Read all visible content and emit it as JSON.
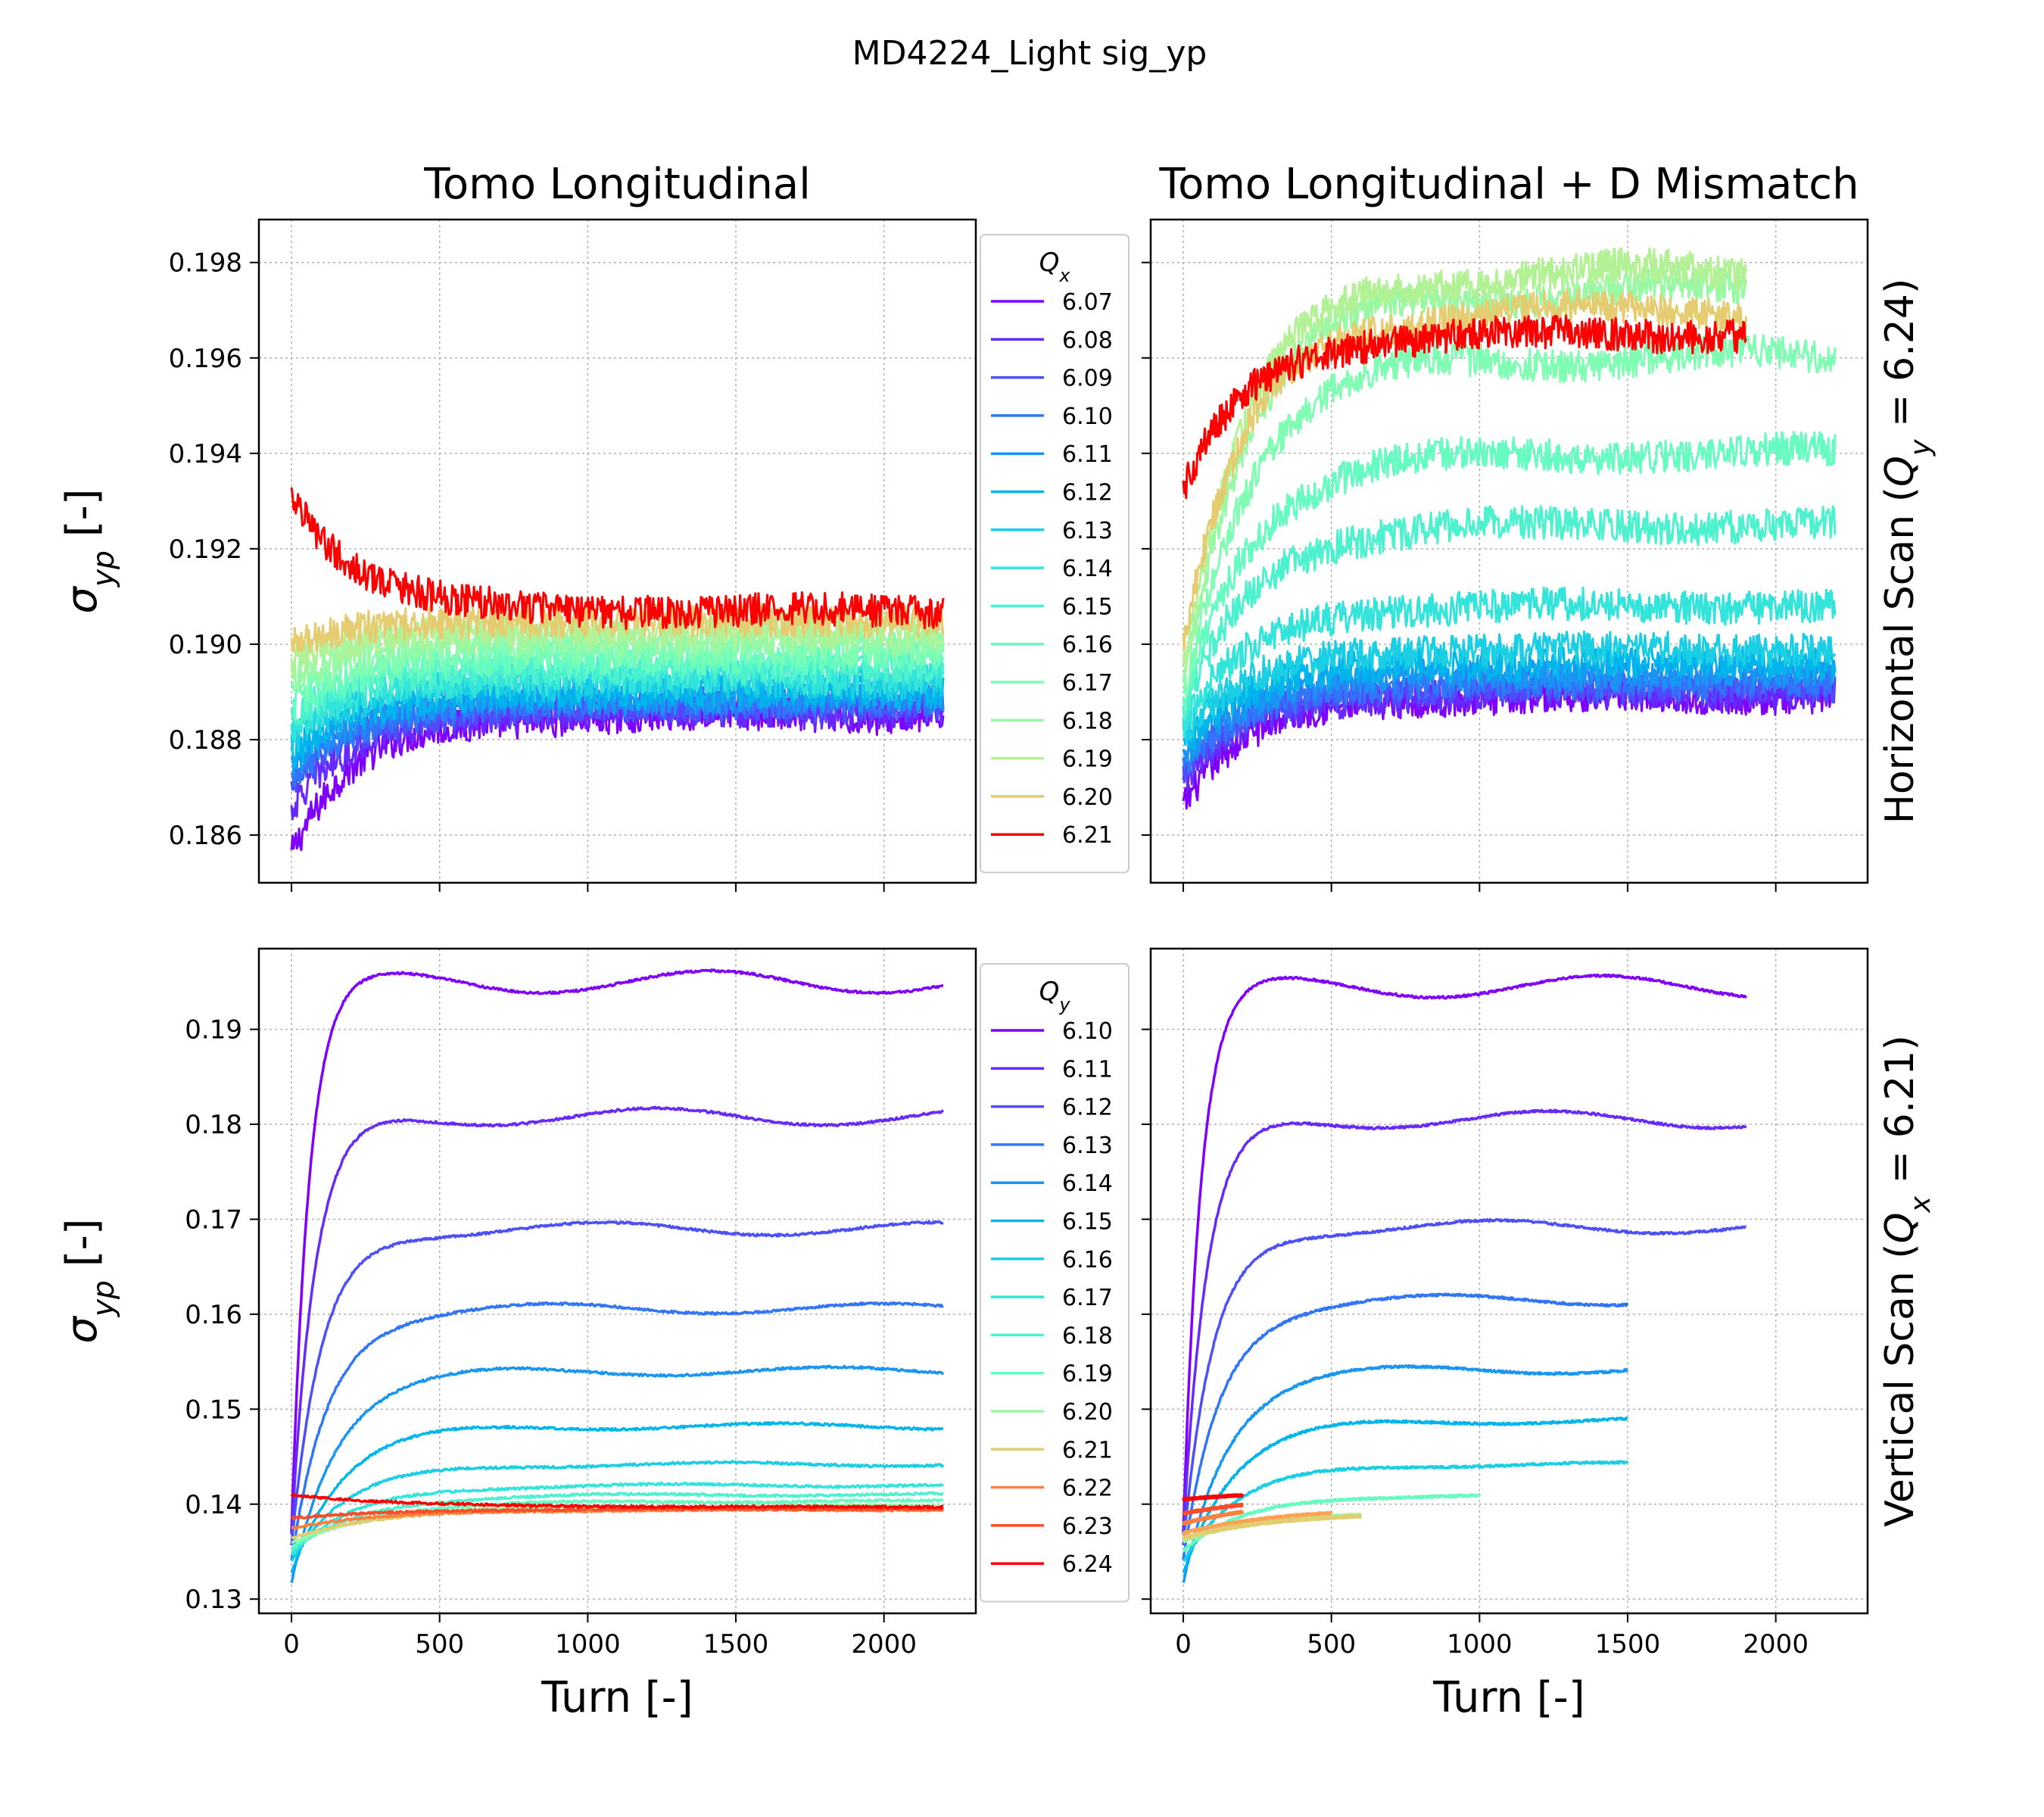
{
  "figure": {
    "suptitle": "MD4224_Light sig_yp",
    "col_titles": [
      "Tomo Longitudinal",
      "Tomo Longitudinal + D Mismatch"
    ],
    "row_labels": [
      "Horizontal Scan (Q_y = 6.24)",
      "Vertical Scan (Q_x = 6.21)"
    ],
    "ylabel": "σ_yp [-]",
    "xlabel": "Turn [-]"
  },
  "chart_data": [
    {
      "id": "top-left",
      "type": "line",
      "title": "Tomo Longitudinal",
      "xlabel": "",
      "ylabel": "σ_yp [-]",
      "xlim": [
        -110,
        2310
      ],
      "ylim": [
        0.185,
        0.1989
      ],
      "xticks": [
        0,
        500,
        1000,
        1500,
        2000
      ],
      "yticks": [
        0.186,
        0.188,
        0.19,
        0.192,
        0.194,
        0.196,
        0.198
      ],
      "ytick_labels": [
        "0.186",
        "0.188",
        "0.190",
        "0.192",
        "0.194",
        "0.196",
        "0.198"
      ],
      "grid": true,
      "legend": {
        "title": "Q_x",
        "placement": "right-outside"
      },
      "series": [
        {
          "name": "6.07",
          "color": "#7f00ff",
          "end": 2200,
          "plateau": 0.1885,
          "start": 0.1856,
          "noise": 0.00035
        },
        {
          "name": "6.08",
          "color": "#6629fe",
          "end": 2200,
          "plateau": 0.1886,
          "start": 0.1865,
          "noise": 0.00035
        },
        {
          "name": "6.09",
          "color": "#4c50fc",
          "end": 2200,
          "plateau": 0.1887,
          "start": 0.187,
          "noise": 0.00035
        },
        {
          "name": "6.10",
          "color": "#3176f8",
          "end": 2200,
          "plateau": 0.1888,
          "start": 0.1872,
          "noise": 0.00035
        },
        {
          "name": "6.11",
          "color": "#1996f3",
          "end": 2200,
          "plateau": 0.1889,
          "start": 0.1875,
          "noise": 0.00035
        },
        {
          "name": "6.12",
          "color": "#00b5eb",
          "end": 2200,
          "plateau": 0.189,
          "start": 0.1877,
          "noise": 0.00035
        },
        {
          "name": "6.13",
          "color": "#1acee3",
          "end": 2200,
          "plateau": 0.1892,
          "start": 0.188,
          "noise": 0.00035
        },
        {
          "name": "6.14",
          "color": "#32e4d9",
          "end": 2200,
          "plateau": 0.1893,
          "start": 0.1882,
          "noise": 0.00035
        },
        {
          "name": "6.15",
          "color": "#4cf2ce",
          "end": 2200,
          "plateau": 0.1895,
          "start": 0.1885,
          "noise": 0.00035
        },
        {
          "name": "6.16",
          "color": "#66fcc1",
          "end": 2200,
          "plateau": 0.1897,
          "start": 0.1887,
          "noise": 0.00035
        },
        {
          "name": "6.17",
          "color": "#7ffeb3",
          "end": 2200,
          "plateau": 0.1899,
          "start": 0.189,
          "noise": 0.00035
        },
        {
          "name": "6.18",
          "color": "#99f8a4",
          "end": 2200,
          "plateau": 0.1901,
          "start": 0.1893,
          "noise": 0.00035
        },
        {
          "name": "6.19",
          "color": "#b2f295",
          "end": 2200,
          "plateau": 0.1903,
          "start": 0.1896,
          "noise": 0.00035
        },
        {
          "name": "6.20",
          "color": "#e6cc70",
          "end": 2200,
          "plateau": 0.1905,
          "start": 0.19,
          "noise": 0.00035
        },
        {
          "name": "6.21",
          "color": "#ff0000",
          "end": 2200,
          "plateau": 0.1907,
          "start": 0.1932,
          "noise": 0.00035
        }
      ]
    },
    {
      "id": "top-right",
      "type": "line",
      "title": "Tomo Longitudinal + D Mismatch",
      "xlabel": "",
      "ylabel": "",
      "xlim": [
        -110,
        2310
      ],
      "ylim": [
        0.185,
        0.1989
      ],
      "xticks": [
        0,
        500,
        1000,
        1500,
        2000
      ],
      "yticks": [
        0.186,
        0.188,
        0.19,
        0.192,
        0.194,
        0.196,
        0.198
      ],
      "grid": true,
      "row_label": "Horizontal Scan (Q_y = 6.24)",
      "series": [
        {
          "name": "6.07",
          "color": "#7f00ff",
          "end": 2200,
          "plateau": 0.1889,
          "start": 0.1866,
          "noise": 0.00035
        },
        {
          "name": "6.08",
          "color": "#6629fe",
          "end": 2200,
          "plateau": 0.189,
          "start": 0.187,
          "noise": 0.00035
        },
        {
          "name": "6.09",
          "color": "#4c50fc",
          "end": 2200,
          "plateau": 0.1891,
          "start": 0.1873,
          "noise": 0.00035
        },
        {
          "name": "6.10",
          "color": "#3176f8",
          "end": 2200,
          "plateau": 0.1892,
          "start": 0.1875,
          "noise": 0.00035
        },
        {
          "name": "6.11",
          "color": "#1996f3",
          "end": 2200,
          "plateau": 0.1894,
          "start": 0.1877,
          "noise": 0.00035
        },
        {
          "name": "6.12",
          "color": "#00b5eb",
          "end": 2200,
          "plateau": 0.1896,
          "start": 0.1879,
          "noise": 0.00035
        },
        {
          "name": "6.13",
          "color": "#1acee3",
          "end": 2200,
          "plateau": 0.1899,
          "start": 0.1881,
          "noise": 0.00035
        },
        {
          "name": "6.14",
          "color": "#32e4d9",
          "end": 2200,
          "plateau": 0.1908,
          "start": 0.1883,
          "noise": 0.00035
        },
        {
          "name": "6.15",
          "color": "#4cf2ce",
          "end": 2200,
          "plateau": 0.1925,
          "start": 0.1885,
          "noise": 0.00035
        },
        {
          "name": "6.16",
          "color": "#66fcc1",
          "end": 2200,
          "plateau": 0.194,
          "start": 0.1887,
          "noise": 0.00035
        },
        {
          "name": "6.17",
          "color": "#7ffeb3",
          "end": 2200,
          "plateau": 0.196,
          "start": 0.1889,
          "noise": 0.00035
        },
        {
          "name": "6.18",
          "color": "#99f8a4",
          "end": 1900,
          "plateau": 0.1974,
          "start": 0.1892,
          "noise": 0.00035
        },
        {
          "name": "6.19",
          "color": "#b2f295",
          "end": 1900,
          "plateau": 0.1978,
          "start": 0.1895,
          "noise": 0.00035
        },
        {
          "name": "6.20",
          "color": "#e6cc70",
          "end": 1900,
          "plateau": 0.197,
          "start": 0.19,
          "noise": 0.00035
        },
        {
          "name": "6.21",
          "color": "#ff0000",
          "end": 1900,
          "plateau": 0.1965,
          "start": 0.1932,
          "noise": 0.00035
        }
      ]
    },
    {
      "id": "bottom-left",
      "type": "line",
      "title": "",
      "xlabel": "Turn [-]",
      "ylabel": "σ_yp [-]",
      "xlim": [
        -110,
        2310
      ],
      "ylim": [
        0.1285,
        0.1985
      ],
      "xticks": [
        0,
        500,
        1000,
        1500,
        2000
      ],
      "xtick_labels": [
        "0",
        "500",
        "1000",
        "1500",
        "2000"
      ],
      "yticks": [
        0.13,
        0.14,
        0.15,
        0.16,
        0.17,
        0.18,
        0.19
      ],
      "ytick_labels": [
        "0.13",
        "0.14",
        "0.15",
        "0.16",
        "0.17",
        "0.18",
        "0.19"
      ],
      "grid": true,
      "legend": {
        "title": "Q_y",
        "placement": "right-outside"
      },
      "series": [
        {
          "name": "6.10",
          "color": "#7f00ff",
          "end": 2200,
          "plateau": 0.195,
          "start": 0.137,
          "noise": 0.00012
        },
        {
          "name": "6.11",
          "color": "#6629fe",
          "end": 2200,
          "plateau": 0.1808,
          "start": 0.136,
          "noise": 0.00012
        },
        {
          "name": "6.12",
          "color": "#4c50fc",
          "end": 2200,
          "plateau": 0.169,
          "start": 0.135,
          "noise": 0.00012
        },
        {
          "name": "6.13",
          "color": "#3176f8",
          "end": 2200,
          "plateau": 0.1606,
          "start": 0.134,
          "noise": 0.00012
        },
        {
          "name": "6.14",
          "color": "#1996f3",
          "end": 2200,
          "plateau": 0.154,
          "start": 0.132,
          "noise": 0.00012
        },
        {
          "name": "6.15",
          "color": "#00b5eb",
          "end": 2200,
          "plateau": 0.1482,
          "start": 0.133,
          "noise": 0.00012
        },
        {
          "name": "6.16",
          "color": "#1acee3",
          "end": 2200,
          "plateau": 0.1442,
          "start": 0.134,
          "noise": 0.00012
        },
        {
          "name": "6.17",
          "color": "#32e4d9",
          "end": 2200,
          "plateau": 0.142,
          "start": 0.1345,
          "noise": 0.00012
        },
        {
          "name": "6.18",
          "color": "#4cf2ce",
          "end": 2200,
          "plateau": 0.141,
          "start": 0.135,
          "noise": 0.00012
        },
        {
          "name": "6.19",
          "color": "#66fcc1",
          "end": 2200,
          "plateau": 0.1403,
          "start": 0.1355,
          "noise": 0.00012
        },
        {
          "name": "6.20",
          "color": "#99f8a4",
          "end": 2200,
          "plateau": 0.1398,
          "start": 0.136,
          "noise": 0.00012
        },
        {
          "name": "6.21",
          "color": "#e6cc70",
          "end": 2200,
          "plateau": 0.1395,
          "start": 0.1365,
          "noise": 0.00012
        },
        {
          "name": "6.22",
          "color": "#ff7f40",
          "end": 2200,
          "plateau": 0.1394,
          "start": 0.1375,
          "noise": 0.00012
        },
        {
          "name": "6.23",
          "color": "#ff4c27",
          "end": 2200,
          "plateau": 0.1395,
          "start": 0.1385,
          "noise": 0.00012
        },
        {
          "name": "6.24",
          "color": "#ff0000",
          "end": 2200,
          "plateau": 0.1397,
          "start": 0.141,
          "noise": 0.00012
        }
      ]
    },
    {
      "id": "bottom-right",
      "type": "line",
      "title": "",
      "xlabel": "Turn [-]",
      "ylabel": "",
      "xlim": [
        -110,
        2310
      ],
      "ylim": [
        0.1285,
        0.1985
      ],
      "xticks": [
        0,
        500,
        1000,
        1500,
        2000
      ],
      "xtick_labels": [
        "0",
        "500",
        "1000",
        "1500",
        "2000"
      ],
      "yticks": [
        0.13,
        0.14,
        0.15,
        0.16,
        0.17,
        0.18,
        0.19
      ],
      "grid": true,
      "row_label": "Vertical Scan (Q_x = 6.21)",
      "series": [
        {
          "name": "6.10",
          "color": "#7f00ff",
          "end": 1900,
          "plateau": 0.1945,
          "start": 0.137,
          "noise": 0.00012
        },
        {
          "name": "6.11",
          "color": "#6629fe",
          "end": 1900,
          "plateau": 0.1805,
          "start": 0.136,
          "noise": 0.00012
        },
        {
          "name": "6.12",
          "color": "#4c50fc",
          "end": 1900,
          "plateau": 0.1692,
          "start": 0.135,
          "noise": 0.00012
        },
        {
          "name": "6.13",
          "color": "#3176f8",
          "end": 1500,
          "plateau": 0.1615,
          "start": 0.134,
          "noise": 0.00012
        },
        {
          "name": "6.14",
          "color": "#1996f3",
          "end": 1500,
          "plateau": 0.1542,
          "start": 0.132,
          "noise": 0.00012
        },
        {
          "name": "6.15",
          "color": "#00b5eb",
          "end": 1500,
          "plateau": 0.1488,
          "start": 0.133,
          "noise": 0.00012
        },
        {
          "name": "6.16",
          "color": "#1acee3",
          "end": 1500,
          "plateau": 0.1442,
          "start": 0.134,
          "noise": 0.00012
        },
        {
          "name": "6.17",
          "color": "#66fcc1",
          "end": 1000,
          "plateau": 0.141,
          "start": 0.135,
          "noise": 0.00012
        },
        {
          "name": "6.18",
          "color": "#99f8a4",
          "end": 600,
          "plateau": 0.1392,
          "start": 0.136,
          "noise": 0.00012
        },
        {
          "name": "6.19",
          "color": "#c6e283",
          "end": 600,
          "plateau": 0.139,
          "start": 0.1362,
          "noise": 0.00012
        },
        {
          "name": "6.20",
          "color": "#e6cc70",
          "end": 600,
          "plateau": 0.139,
          "start": 0.1365,
          "noise": 0.00012
        },
        {
          "name": "6.21",
          "color": "#ffa256",
          "end": 500,
          "plateau": 0.1395,
          "start": 0.137,
          "noise": 0.00012
        },
        {
          "name": "6.22",
          "color": "#ff7f40",
          "end": 200,
          "plateau": 0.1405,
          "start": 0.138,
          "noise": 0.00012
        },
        {
          "name": "6.23",
          "color": "#ff4c27",
          "end": 200,
          "plateau": 0.141,
          "start": 0.139,
          "noise": 0.00012
        },
        {
          "name": "6.24",
          "color": "#ff0000",
          "end": 200,
          "plateau": 0.1415,
          "start": 0.1405,
          "noise": 0.00012
        }
      ]
    }
  ]
}
